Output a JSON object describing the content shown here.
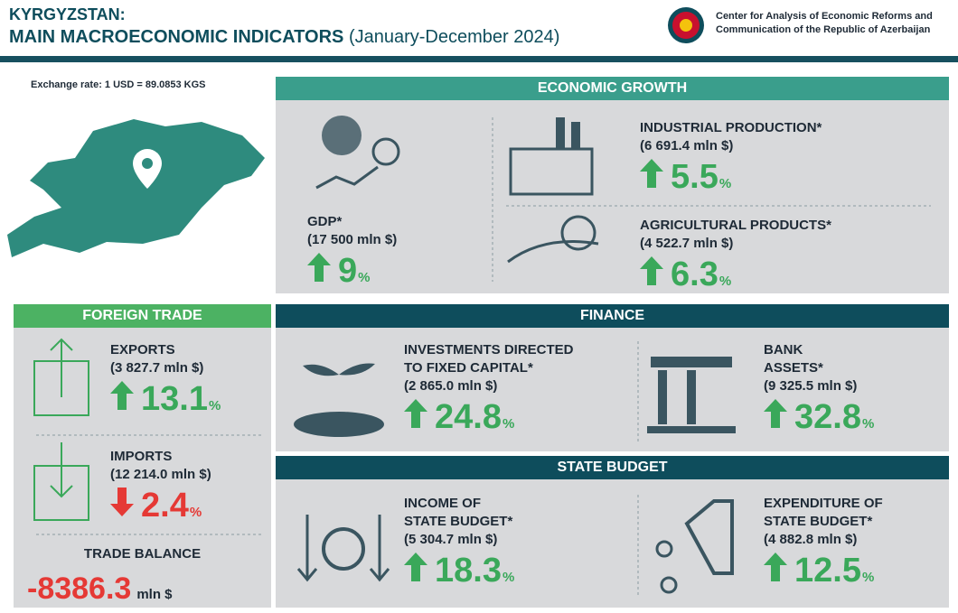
{
  "header": {
    "title_line1": "KYRGYZSTAN:",
    "title_line2": "MAIN MACROECONOMIC INDICATORS",
    "period": "(January-December 2024)",
    "org_line1": "Center for Analysis of Economic Reforms and",
    "org_line2": "Communication of the Republic of Azerbaijan"
  },
  "exchange_rate": "Exchange rate: 1 USD = 89.0853 KGS",
  "sections": {
    "economic_growth": {
      "title": "ECONOMIC GROWTH",
      "items": [
        {
          "label": [
            "GDP*"
          ],
          "amount": "(17 500 mln $)",
          "direction": "up",
          "value": 9,
          "unit": "%"
        },
        {
          "label": [
            "INDUSTRIAL PRODUCTION*"
          ],
          "amount": "(6 691.4 mln $)",
          "direction": "up",
          "value": 5.5,
          "unit": "%"
        },
        {
          "label": [
            "AGRICULTURAL PRODUCTS*"
          ],
          "amount": "(4 522.7 mln $)",
          "direction": "up",
          "value": 6.3,
          "unit": "%"
        }
      ]
    },
    "foreign_trade": {
      "title": "FOREIGN TRADE",
      "items": [
        {
          "label": [
            "EXPORTS"
          ],
          "amount": "(3 827.7 mln $)",
          "direction": "up",
          "value": 13.1,
          "unit": "%"
        },
        {
          "label": [
            "IMPORTS"
          ],
          "amount": "(12 214.0 mln $)",
          "direction": "down",
          "value": 2.4,
          "unit": "%"
        }
      ],
      "trade_balance": {
        "label": "TRADE BALANCE",
        "value": -8386.3,
        "unit": "mln $"
      }
    },
    "finance": {
      "title": "FINANCE",
      "items": [
        {
          "label": [
            "INVESTMENTS DIRECTED",
            "TO FIXED CAPITAL*"
          ],
          "amount": "(2 865.0 mln $)",
          "direction": "up",
          "value": 24.8,
          "unit": "%"
        },
        {
          "label": [
            "BANK",
            "ASSETS*"
          ],
          "amount": "(9 325.5 mln $)",
          "direction": "up",
          "value": 32.8,
          "unit": "%"
        }
      ]
    },
    "state_budget": {
      "title": "STATE BUDGET",
      "items": [
        {
          "label": [
            "INCOME OF",
            "STATE BUDGET*"
          ],
          "amount": "(5 304.7 mln $)",
          "direction": "up",
          "value": 18.3,
          "unit": "%"
        },
        {
          "label": [
            "EXPENDITURE OF",
            "STATE BUDGET*"
          ],
          "amount": "(4 882.8 mln $)",
          "direction": "up",
          "value": 12.5,
          "unit": "%"
        }
      ]
    }
  }
}
